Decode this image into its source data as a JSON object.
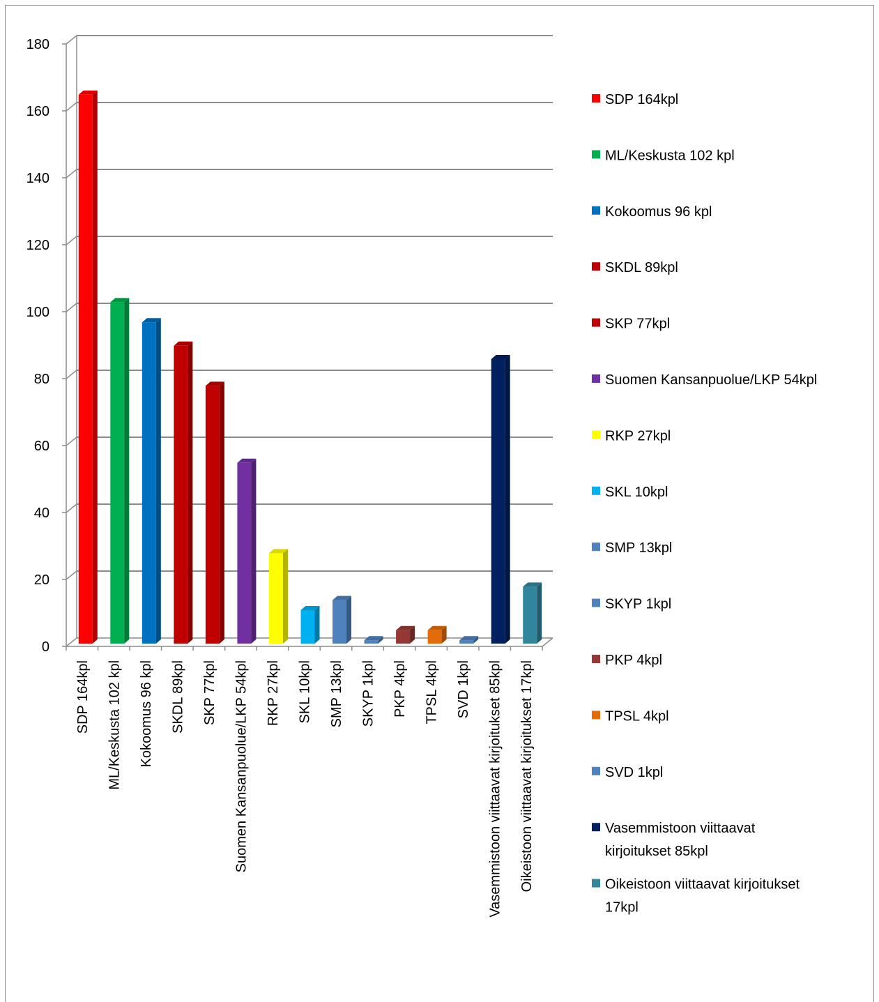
{
  "chart_data": {
    "type": "bar",
    "title": "",
    "xlabel": "",
    "ylabel": "",
    "ylim": [
      0,
      180
    ],
    "yticks": [
      0,
      20,
      40,
      60,
      80,
      100,
      120,
      140,
      160,
      180
    ],
    "grid": true,
    "legend_position": "right",
    "categories": [
      "SDP 164kpl",
      "ML/Keskusta 102 kpl",
      "Kokoomus 96 kpl",
      "SKDL 89kpl",
      "SKP 77kpl",
      "Suomen Kansanpuolue/LKP 54kpl",
      "RKP 27kpl",
      "SKL 10kpl",
      "SMP 13kpl",
      "SKYP 1kpl",
      "PKP 4kpl",
      "TPSL 4kpl",
      "SVD 1kpl",
      "Vasemmistoon viittaavat kirjoitukset 85kpl",
      "Oikeistoon viittaavat kirjoitukset 17kpl"
    ],
    "values": [
      164,
      102,
      96,
      89,
      77,
      54,
      27,
      10,
      13,
      1,
      4,
      4,
      1,
      85,
      17
    ],
    "colors": [
      "#ff0000",
      "#00b050",
      "#0070c0",
      "#c00000",
      "#c00000",
      "#7030a0",
      "#ffff00",
      "#00b0f0",
      "#4f81bd",
      "#4f81bd",
      "#953735",
      "#e36c09",
      "#4f81bd",
      "#002060",
      "#31859c"
    ],
    "legend": [
      [
        "SDP 164kpl"
      ],
      [
        "ML/Keskusta 102 kpl"
      ],
      [
        "Kokoomus 96 kpl"
      ],
      [
        "SKDL 89kpl"
      ],
      [
        "SKP 77kpl"
      ],
      [
        "Suomen Kansanpuolue/LKP 54kpl"
      ],
      [
        "RKP 27kpl"
      ],
      [
        "SKL 10kpl"
      ],
      [
        "SMP 13kpl"
      ],
      [
        "SKYP 1kpl"
      ],
      [
        "PKP 4kpl"
      ],
      [
        "TPSL 4kpl"
      ],
      [
        "SVD 1kpl"
      ],
      [
        "Vasemmistoon viittaavat",
        "kirjoitukset 85kpl"
      ],
      [
        "Oikeistoon viittaavat kirjoitukset",
        "17kpl"
      ]
    ]
  }
}
